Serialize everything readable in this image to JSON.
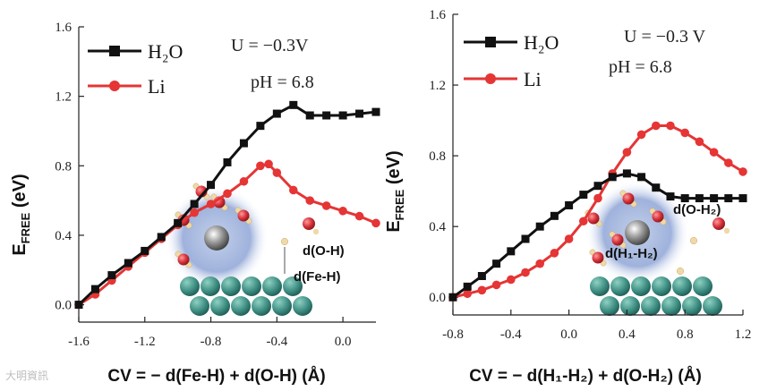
{
  "colors": {
    "h2o": "#111111",
    "li": "#e53535",
    "axis": "#222222",
    "sphere": "#7f96c9",
    "slab": "#3f8f84",
    "oxygen": "#d8343c",
    "hydrogen": "#efd9a8"
  },
  "watermark": "大明資訊",
  "chart_data": [
    {
      "type": "line",
      "title": "",
      "xlabel": "CV = − d(Fe-H) + d(O-H) (Å)",
      "ylabel_main": "E",
      "ylabel_sub": "FREE",
      "ylabel_unit": " (eV)",
      "xlim": [
        -1.6,
        0.2
      ],
      "ylim": [
        -0.1,
        1.6
      ],
      "xticks": [
        "-1.6",
        "-1.2",
        "-0.8",
        "-0.4",
        "0.0"
      ],
      "yticks": [
        "0.0",
        "0.4",
        "0.8",
        "1.2",
        "1.6"
      ],
      "legend_position": "top-left",
      "conditions": [
        "U = −0.3V",
        "pH =  6.8"
      ],
      "annotations": [
        "d(O-H)",
        "d(Fe-H)"
      ],
      "series": [
        {
          "name": "H₂O",
          "marker": "square",
          "x": [
            -1.6,
            -1.5,
            -1.4,
            -1.3,
            -1.2,
            -1.1,
            -1.0,
            -0.9,
            -0.8,
            -0.7,
            -0.6,
            -0.5,
            -0.4,
            -0.3,
            -0.2,
            -0.1,
            0.0,
            0.1,
            0.2
          ],
          "y": [
            0.0,
            0.09,
            0.17,
            0.24,
            0.31,
            0.39,
            0.47,
            0.58,
            0.69,
            0.82,
            0.93,
            1.03,
            1.1,
            1.15,
            1.09,
            1.09,
            1.09,
            1.1,
            1.11
          ]
        },
        {
          "name": "Li",
          "marker": "circle",
          "x": [
            -1.6,
            -1.5,
            -1.4,
            -1.3,
            -1.2,
            -1.1,
            -1.0,
            -0.9,
            -0.8,
            -0.7,
            -0.6,
            -0.5,
            -0.45,
            -0.4,
            -0.3,
            -0.2,
            -0.1,
            0.0,
            0.1,
            0.2
          ],
          "y": [
            0.0,
            0.06,
            0.14,
            0.22,
            0.3,
            0.38,
            0.46,
            0.53,
            0.58,
            0.64,
            0.71,
            0.8,
            0.81,
            0.76,
            0.66,
            0.6,
            0.57,
            0.54,
            0.51,
            0.47
          ]
        }
      ]
    },
    {
      "type": "line",
      "title": "",
      "xlabel": "CV = − d(H₁-H₂) + d(O-H₂) (Å)",
      "ylabel_main": "E",
      "ylabel_sub": "FREE",
      "ylabel_unit": " (eV)",
      "xlim": [
        -0.8,
        1.2
      ],
      "ylim": [
        -0.1,
        1.6
      ],
      "xticks": [
        "-0.8",
        "-0.4",
        "0.0",
        "0.4",
        "0.8",
        "1.2"
      ],
      "yticks": [
        "0.0",
        "0.4",
        "0.8",
        "1.2",
        "1.6"
      ],
      "legend_position": "top-left",
      "conditions": [
        "U = −0.3 V",
        "pH = 6.8"
      ],
      "annotations": [
        "d(O-H₂)",
        "d(H₁-H₂)"
      ],
      "series": [
        {
          "name": "H₂O",
          "marker": "square",
          "x": [
            -0.8,
            -0.7,
            -0.6,
            -0.5,
            -0.4,
            -0.3,
            -0.2,
            -0.1,
            0.0,
            0.1,
            0.2,
            0.3,
            0.4,
            0.5,
            0.6,
            0.7,
            0.8,
            0.9,
            1.0,
            1.1,
            1.2
          ],
          "y": [
            0.0,
            0.06,
            0.12,
            0.19,
            0.26,
            0.33,
            0.4,
            0.46,
            0.52,
            0.58,
            0.63,
            0.68,
            0.7,
            0.68,
            0.62,
            0.57,
            0.56,
            0.56,
            0.56,
            0.56,
            0.56
          ]
        },
        {
          "name": "Li",
          "marker": "circle",
          "x": [
            -0.8,
            -0.7,
            -0.6,
            -0.5,
            -0.4,
            -0.3,
            -0.2,
            -0.1,
            0.0,
            0.1,
            0.2,
            0.3,
            0.4,
            0.5,
            0.6,
            0.7,
            0.8,
            0.9,
            1.0,
            1.1,
            1.2
          ],
          "y": [
            0.0,
            0.02,
            0.04,
            0.07,
            0.1,
            0.14,
            0.19,
            0.25,
            0.33,
            0.43,
            0.56,
            0.7,
            0.82,
            0.92,
            0.97,
            0.97,
            0.93,
            0.88,
            0.82,
            0.76,
            0.71
          ]
        }
      ]
    }
  ]
}
